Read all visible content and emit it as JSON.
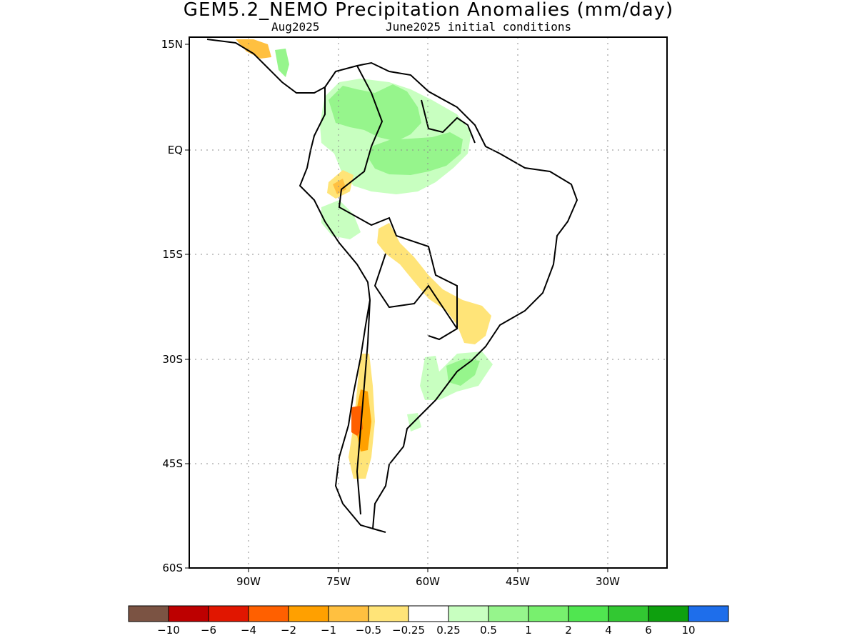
{
  "title": "GEM5.2_NEMO Precipitation Anomalies (mm/day)",
  "subtitle_left": "Aug2025",
  "subtitle_right": "June2025 initial conditions",
  "lat_ticks": [
    "15N",
    "EQ",
    "15S",
    "30S",
    "45S",
    "60S"
  ],
  "lon_ticks": [
    "90W",
    "75W",
    "60W",
    "45W",
    "30W"
  ],
  "colorbar": {
    "colors": [
      "#7b5343",
      "#bd0000",
      "#e11600",
      "#ff6000",
      "#ffa000",
      "#ffc040",
      "#ffe478",
      "#ffffff",
      "#c8ffc0",
      "#96f58c",
      "#78f06e",
      "#50e650",
      "#32c832",
      "#0ea00e",
      "#1e6eeb"
    ],
    "labels": [
      "-10",
      "-6",
      "-4",
      "-2",
      "-1",
      "-0.5",
      "-0.25",
      "0.25",
      "0.5",
      "1",
      "2",
      "4",
      "6",
      "10"
    ]
  },
  "palette": {
    "green_light": "#c8ffc0",
    "green_mid": "#96f58c",
    "yellow": "#ffe478",
    "orange_light": "#ffc040",
    "orange": "#ffa000",
    "red_orange": "#ff6000"
  }
}
